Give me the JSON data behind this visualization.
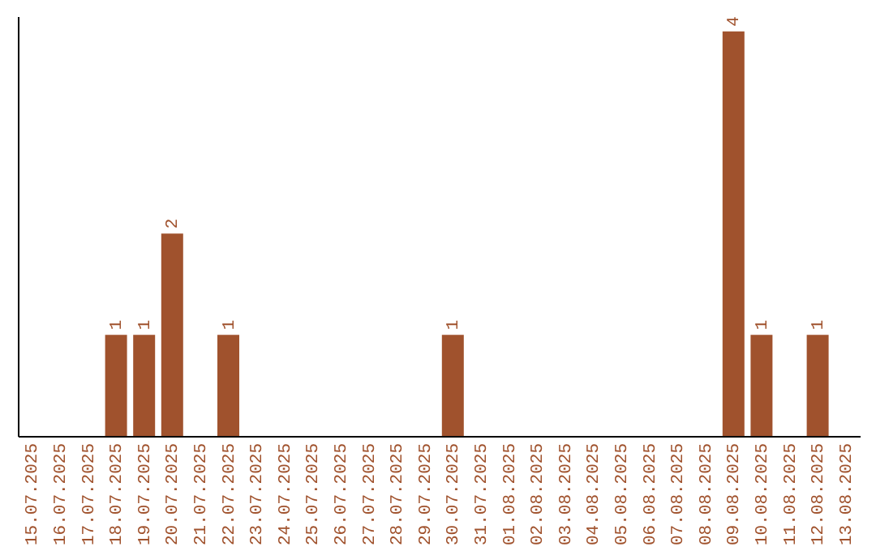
{
  "chart_data": {
    "type": "bar",
    "categories": [
      "15.07.2025",
      "16.07.2025",
      "17.07.2025",
      "18.07.2025",
      "19.07.2025",
      "20.07.2025",
      "21.07.2025",
      "22.07.2025",
      "23.07.2025",
      "24.07.2025",
      "25.07.2025",
      "26.07.2025",
      "27.07.2025",
      "28.07.2025",
      "29.07.2025",
      "30.07.2025",
      "31.07.2025",
      "01.08.2025",
      "02.08.2025",
      "03.08.2025",
      "04.08.2025",
      "05.08.2025",
      "06.08.2025",
      "07.08.2025",
      "08.08.2025",
      "09.08.2025",
      "10.08.2025",
      "11.08.2025",
      "12.08.2025",
      "13.08.2025"
    ],
    "values": [
      0,
      0,
      0,
      1,
      1,
      2,
      0,
      1,
      0,
      0,
      0,
      0,
      0,
      0,
      0,
      1,
      0,
      0,
      0,
      0,
      0,
      0,
      0,
      0,
      0,
      4,
      1,
      0,
      1,
      0
    ],
    "value_labels": [
      null,
      null,
      null,
      "1",
      "1",
      "2",
      null,
      "1",
      null,
      null,
      null,
      null,
      null,
      null,
      null,
      "1",
      null,
      null,
      null,
      null,
      null,
      null,
      null,
      null,
      null,
      "4",
      "1",
      null,
      "1",
      null
    ],
    "color": "#a0522d",
    "ylim": [
      0,
      4.15
    ],
    "tick_labels": "x"
  }
}
